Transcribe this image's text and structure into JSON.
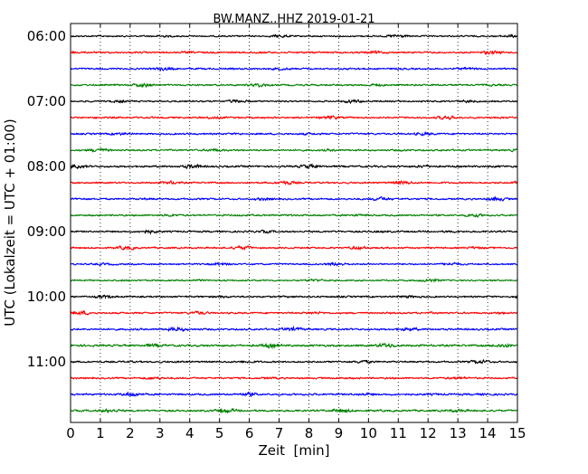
{
  "chart_data": {
    "type": "line",
    "title": "BW.MANZ..HHZ 2019-01-21",
    "xlabel": "Zeit  [min]",
    "ylabel": "UTC (Lokalzeit = UTC + 01:00)",
    "xlim": [
      0,
      15
    ],
    "x_ticks": [
      "0",
      "1",
      "2",
      "3",
      "4",
      "5",
      "6",
      "7",
      "8",
      "9",
      "10",
      "11",
      "12",
      "13",
      "14",
      "15"
    ],
    "y_tick_labels": [
      "06:00",
      "07:00",
      "08:00",
      "09:00",
      "10:00",
      "11:00"
    ],
    "grid": "vertical-dotted",
    "trace_colors": [
      "#000000",
      "#ff0000",
      "#0000ff",
      "#008000"
    ],
    "traces": [
      {
        "start": "06:00",
        "amplitude": 0.9
      },
      {
        "start": "06:15",
        "amplitude": 1.0
      },
      {
        "start": "06:30",
        "amplitude": 1.0
      },
      {
        "start": "06:45",
        "amplitude": 1.0
      },
      {
        "start": "07:00",
        "amplitude": 0.9
      },
      {
        "start": "07:15",
        "amplitude": 1.0
      },
      {
        "start": "07:30",
        "amplitude": 1.0
      },
      {
        "start": "07:45",
        "amplitude": 1.0
      },
      {
        "start": "08:00",
        "amplitude": 1.1
      },
      {
        "start": "08:15",
        "amplitude": 1.0
      },
      {
        "start": "08:30",
        "amplitude": 1.0
      },
      {
        "start": "08:45",
        "amplitude": 1.0
      },
      {
        "start": "09:00",
        "amplitude": 1.0
      },
      {
        "start": "09:15",
        "amplitude": 1.0
      },
      {
        "start": "09:30",
        "amplitude": 0.9
      },
      {
        "start": "09:45",
        "amplitude": 0.9
      },
      {
        "start": "10:00",
        "amplitude": 1.0
      },
      {
        "start": "10:15",
        "amplitude": 1.0
      },
      {
        "start": "10:30",
        "amplitude": 1.1
      },
      {
        "start": "10:45",
        "amplitude": 1.2
      },
      {
        "start": "11:00",
        "amplitude": 1.0
      },
      {
        "start": "11:15",
        "amplitude": 1.0
      },
      {
        "start": "11:30",
        "amplitude": 1.1
      },
      {
        "start": "11:45",
        "amplitude": 1.1
      }
    ]
  }
}
